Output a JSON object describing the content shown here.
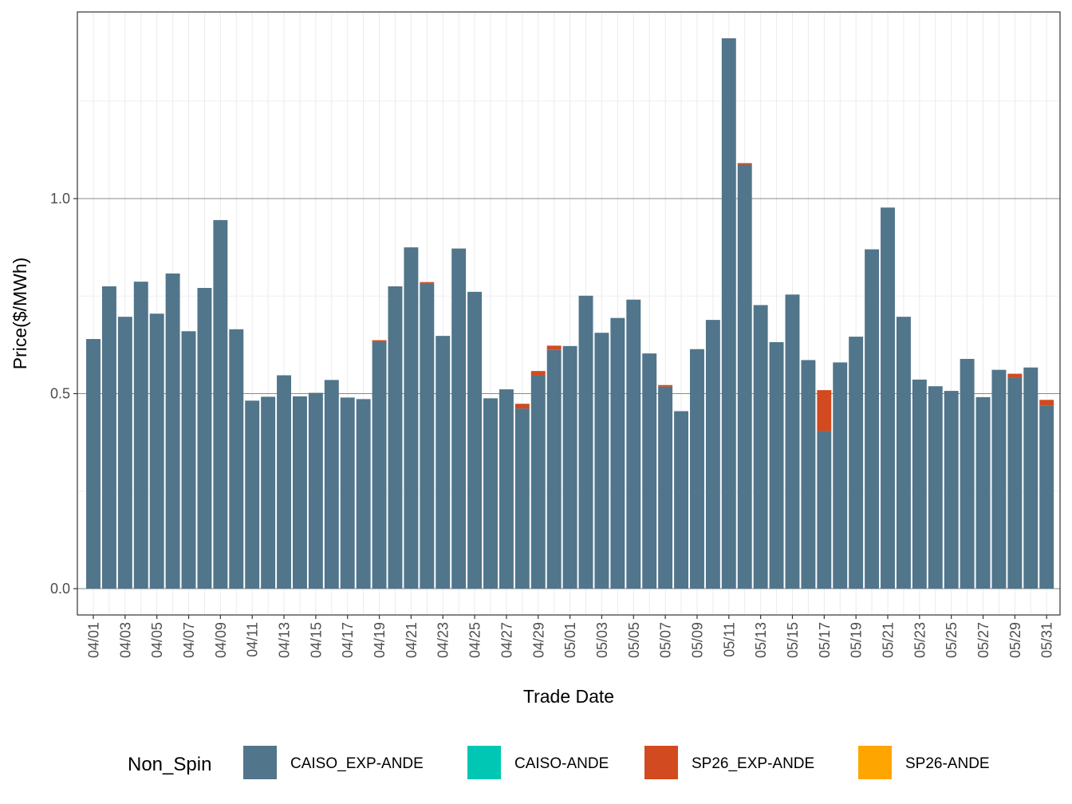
{
  "chart_data": {
    "type": "bar",
    "stacked": true,
    "title": "",
    "xlabel": "Trade Date",
    "ylabel": "Price($/MWh)",
    "ylim": [
      -0.07,
      1.46
    ],
    "y_ticks": [
      0.0,
      0.5,
      1.0
    ],
    "y_tick_labels": [
      "0.0",
      "0.5",
      "1.0"
    ],
    "grid": true,
    "legend_position": "bottom",
    "legend_title": "Non_Spin",
    "categories": [
      "04/01",
      "04/02",
      "04/03",
      "04/04",
      "04/05",
      "04/06",
      "04/07",
      "04/08",
      "04/09",
      "04/10",
      "04/11",
      "04/12",
      "04/13",
      "04/14",
      "04/15",
      "04/16",
      "04/17",
      "04/18",
      "04/19",
      "04/20",
      "04/21",
      "04/22",
      "04/23",
      "04/24",
      "04/25",
      "04/26",
      "04/27",
      "04/28",
      "04/29",
      "04/30",
      "05/01",
      "05/02",
      "05/03",
      "05/04",
      "05/05",
      "05/06",
      "05/07",
      "05/08",
      "05/09",
      "05/10",
      "05/11",
      "05/12",
      "05/13",
      "05/14",
      "05/15",
      "05/16",
      "05/17",
      "05/18",
      "05/19",
      "05/20",
      "05/21",
      "05/22",
      "05/23",
      "05/24",
      "05/25",
      "05/26",
      "05/27",
      "05/28",
      "05/29",
      "05/30",
      "05/31"
    ],
    "x_tick_labels": [
      "04/01",
      "04/03",
      "04/05",
      "04/07",
      "04/09",
      "04/11",
      "04/13",
      "04/15",
      "04/17",
      "04/19",
      "04/21",
      "04/23",
      "04/25",
      "04/27",
      "04/29",
      "05/01",
      "05/03",
      "05/05",
      "05/07",
      "05/09",
      "05/11",
      "05/13",
      "05/15",
      "05/17",
      "05/19",
      "05/21",
      "05/23",
      "05/25",
      "05/27",
      "05/29",
      "05/31"
    ],
    "series": [
      {
        "name": "CAISO_EXP-ANDE",
        "color": "#51758a",
        "values": [
          0.64,
          0.775,
          0.697,
          0.787,
          0.705,
          0.808,
          0.66,
          0.771,
          0.945,
          0.665,
          0.482,
          0.492,
          0.547,
          0.493,
          0.502,
          0.535,
          0.49,
          0.486,
          0.633,
          0.775,
          0.875,
          0.782,
          0.648,
          0.872,
          0.761,
          0.488,
          0.511,
          0.462,
          0.547,
          0.612,
          0.622,
          0.751,
          0.656,
          0.694,
          0.741,
          0.603,
          0.518,
          0.455,
          0.614,
          0.689,
          1.411,
          1.087,
          0.727,
          0.632,
          0.754,
          0.586,
          0.404,
          0.58,
          0.646,
          0.87,
          0.977,
          0.697,
          0.536,
          0.519,
          0.507,
          0.589,
          0.491,
          0.561,
          0.541,
          0.567,
          0.469
        ]
      },
      {
        "name": "CAISO-ANDE",
        "color": "#00c7b3",
        "values": [
          0,
          0,
          0,
          0,
          0,
          0,
          0,
          0,
          0,
          0,
          0,
          0,
          0,
          0,
          0,
          0,
          0,
          0,
          0,
          0,
          0,
          0,
          0,
          0,
          0,
          0,
          0,
          0,
          0,
          0,
          0,
          0,
          0,
          0,
          0,
          0,
          0,
          0,
          0,
          0,
          0,
          0,
          0,
          0,
          0,
          0,
          0,
          0,
          0,
          0,
          0,
          0,
          0,
          0,
          0,
          0,
          0,
          0,
          0,
          0,
          0
        ]
      },
      {
        "name": "SP26_EXP-ANDE",
        "color": "#d24a1f",
        "values": [
          0,
          0,
          0,
          0,
          0,
          0,
          0,
          0,
          0,
          0,
          0,
          0,
          0,
          0,
          0,
          0,
          0,
          0,
          0.004,
          0,
          0,
          0.004,
          0,
          0,
          0,
          0,
          0,
          0.012,
          0.011,
          0.011,
          0,
          0,
          0,
          0,
          0,
          0,
          0.004,
          0,
          0,
          0,
          0,
          0.004,
          0,
          0,
          0,
          0,
          0.105,
          0,
          0,
          0,
          0,
          0,
          0,
          0,
          0,
          0,
          0,
          0,
          0.01,
          0,
          0.015
        ]
      },
      {
        "name": "SP26-ANDE",
        "color": "#ffa500",
        "values": [
          0,
          0,
          0,
          0,
          0,
          0,
          0,
          0,
          0,
          0,
          0,
          0,
          0,
          0,
          0,
          0,
          0,
          0,
          0,
          0,
          0,
          0,
          0,
          0,
          0,
          0,
          0,
          0,
          0,
          0,
          0,
          0,
          0,
          0,
          0,
          0,
          0,
          0,
          0,
          0,
          0,
          0,
          0,
          0,
          0,
          0,
          0,
          0,
          0,
          0,
          0,
          0,
          0,
          0,
          0,
          0,
          0,
          0,
          0,
          0,
          0
        ]
      }
    ]
  }
}
